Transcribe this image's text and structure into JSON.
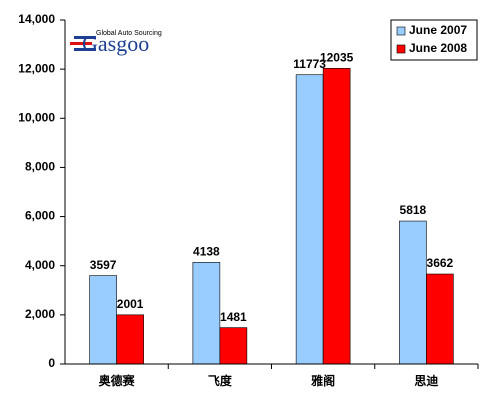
{
  "chart_data": {
    "type": "bar",
    "watermark": {
      "text": "Gasgoo",
      "tagline": "Global Auto Sourcing"
    },
    "categories": [
      "奥德赛",
      "飞度",
      "雅阁",
      "思迪"
    ],
    "series": [
      {
        "name": "June 2007",
        "color": "#99ccff",
        "values": [
          3597,
          4138,
          11773,
          5818
        ]
      },
      {
        "name": "June 2008",
        "color": "#ff0000",
        "values": [
          2001,
          1481,
          12035,
          3662
        ]
      }
    ],
    "ylim": [
      0,
      14000
    ],
    "yticks": [
      0,
      {
        "value": 2000,
        "label": "2,000"
      },
      {
        "value": 4000,
        "label": "4,000"
      },
      {
        "value": 6000,
        "label": "6,000"
      },
      {
        "value": 8000,
        "label": "8,000"
      },
      {
        "value": 10000,
        "label": "10,000"
      },
      {
        "value": 12000,
        "label": "12,000"
      },
      {
        "value": 14000,
        "label": "14,000"
      }
    ],
    "grid": false,
    "legend": "top-right"
  }
}
